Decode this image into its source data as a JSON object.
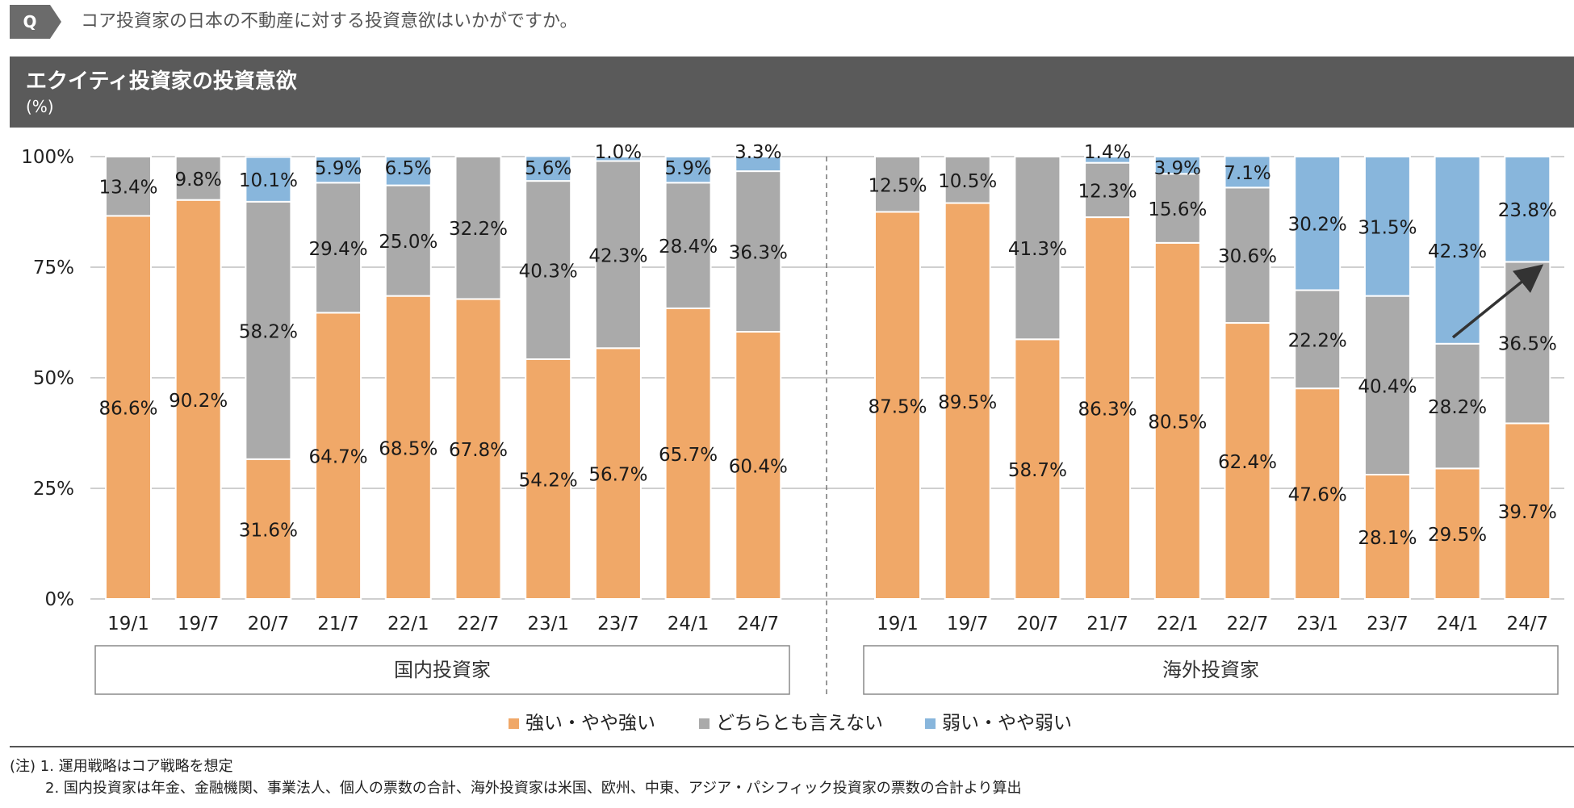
{
  "question": {
    "badge": "Q",
    "text": "コア投資家の日本の不動産に対する投資意欲はいかがですか。"
  },
  "header": {
    "title": "エクイティ投資家の投資意欲",
    "unit": "(%)"
  },
  "colors": {
    "strong": "#f0a868",
    "neutral": "#aaaaaa",
    "weak": "#88b6dc",
    "grid": "#bfbfbf"
  },
  "chart_data": {
    "type": "bar",
    "stacked": true,
    "title": "エクイティ投資家の投資意欲",
    "ylabel": "(%)",
    "ylim": [
      0,
      100
    ],
    "yticks": [
      "0%",
      "25%",
      "50%",
      "75%",
      "100%"
    ],
    "legend_position": "bottom",
    "series_names": [
      "強い・やや強い",
      "どちらとも言えない",
      "弱い・やや弱い"
    ],
    "groups": [
      {
        "name": "国内投資家",
        "categories": [
          "19/1",
          "19/7",
          "20/7",
          "21/7",
          "22/1",
          "22/7",
          "23/1",
          "23/7",
          "24/1",
          "24/7"
        ],
        "series": [
          {
            "name": "強い・やや強い",
            "values": [
              86.6,
              90.2,
              31.6,
              64.7,
              68.5,
              67.8,
              54.2,
              56.7,
              65.7,
              60.4
            ]
          },
          {
            "name": "どちらとも言えない",
            "values": [
              13.4,
              9.8,
              58.2,
              29.4,
              25.0,
              32.2,
              40.3,
              42.3,
              28.4,
              36.3
            ]
          },
          {
            "name": "弱い・やや弱い",
            "values": [
              0,
              0,
              10.1,
              5.9,
              6.5,
              0,
              5.6,
              1.0,
              5.9,
              3.3
            ]
          }
        ],
        "labels": [
          [
            "86.6%",
            "90.2%",
            "31.6%",
            "64.7%",
            "68.5%",
            "67.8%",
            "54.2%",
            "56.7%",
            "65.7%",
            "60.4%"
          ],
          [
            "13.4%",
            "9.8%",
            "58.2%",
            "29.4%",
            "25.0%",
            "32.2%",
            "40.3%",
            "42.3%",
            "28.4%",
            "36.3%"
          ],
          [
            "",
            "",
            "10.1%",
            "5.9%",
            "6.5%",
            "",
            "5.6%",
            "1.0%",
            "5.9%",
            "3.3%"
          ]
        ]
      },
      {
        "name": "海外投資家",
        "categories": [
          "19/1",
          "19/7",
          "20/7",
          "21/7",
          "22/1",
          "22/7",
          "23/1",
          "23/7",
          "24/1",
          "24/7"
        ],
        "series": [
          {
            "name": "強い・やや強い",
            "values": [
              87.5,
              89.5,
              58.7,
              86.3,
              80.5,
              62.4,
              47.6,
              28.1,
              29.5,
              39.7
            ]
          },
          {
            "name": "どちらとも言えない",
            "values": [
              12.5,
              10.5,
              41.3,
              12.3,
              15.6,
              30.6,
              22.2,
              40.4,
              28.2,
              36.5
            ]
          },
          {
            "name": "弱い・やや弱い",
            "values": [
              0,
              0,
              0,
              1.4,
              3.9,
              7.1,
              30.2,
              31.5,
              42.3,
              23.8
            ]
          }
        ],
        "labels": [
          [
            "87.5%",
            "89.5%",
            "58.7%",
            "86.3%",
            "80.5%",
            "62.4%",
            "47.6%",
            "28.1%",
            "29.5%",
            "39.7%"
          ],
          [
            "12.5%",
            "10.5%",
            "41.3%",
            "12.3%",
            "15.6%",
            "30.6%",
            "22.2%",
            "40.4%",
            "28.2%",
            "36.5%"
          ],
          [
            "",
            "",
            "",
            "1.4%",
            "3.9%",
            "7.1%",
            "30.2%",
            "31.5%",
            "42.3%",
            "23.8%"
          ]
        ]
      }
    ],
    "annotations": [
      {
        "type": "arrow",
        "description": "trend arrow in 海外投資家 from 24/1 to 24/7"
      }
    ]
  },
  "notes": [
    "(注) 1.  運用戦略はコア戦略を想定",
    "2.  国内投資家は年金、金融機関、事業法人、個人の票数の合計、海外投資家は米国、欧州、中東、アジア・パシフィック投資家の票数の合計より算出"
  ]
}
